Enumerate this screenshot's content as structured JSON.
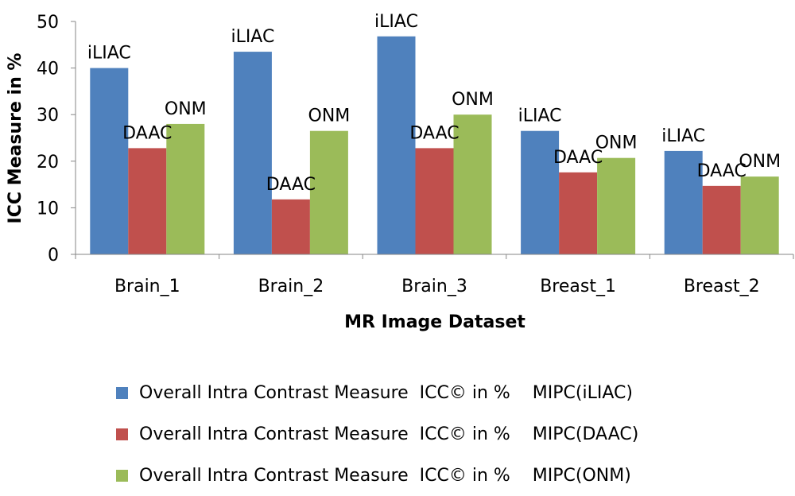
{
  "chart_data": {
    "type": "bar",
    "title": "",
    "xlabel": "MR Image Dataset",
    "ylabel": "ICC Measure in %",
    "ylim": [
      0,
      50
    ],
    "yticks": [
      0,
      10,
      20,
      30,
      40,
      50
    ],
    "categories": [
      "Brain_1",
      "Brain_2",
      "Brain_3",
      "Breast_1",
      "Breast_2"
    ],
    "series": [
      {
        "name": "Overall Intra Contrast Measure  ICC© in %    MIPC(iLIAC)",
        "label": "iLIAC",
        "color": "#4F81BD",
        "values": [
          40,
          43.5,
          46.8,
          26.5,
          22.2
        ]
      },
      {
        "name": "Overall Intra Contrast Measure  ICC© in %    MIPC(DAAC)",
        "label": "DAAC",
        "color": "#C0504D",
        "values": [
          22.8,
          11.8,
          22.8,
          17.6,
          14.7
        ]
      },
      {
        "name": "Overall Intra Contrast Measure  ICC© in %    MIPC(ONM)",
        "label": "ONM",
        "color": "#9BBB59",
        "values": [
          28,
          26.5,
          30,
          20.7,
          16.7
        ]
      }
    ],
    "grid": false,
    "legend_position": "bottom"
  }
}
